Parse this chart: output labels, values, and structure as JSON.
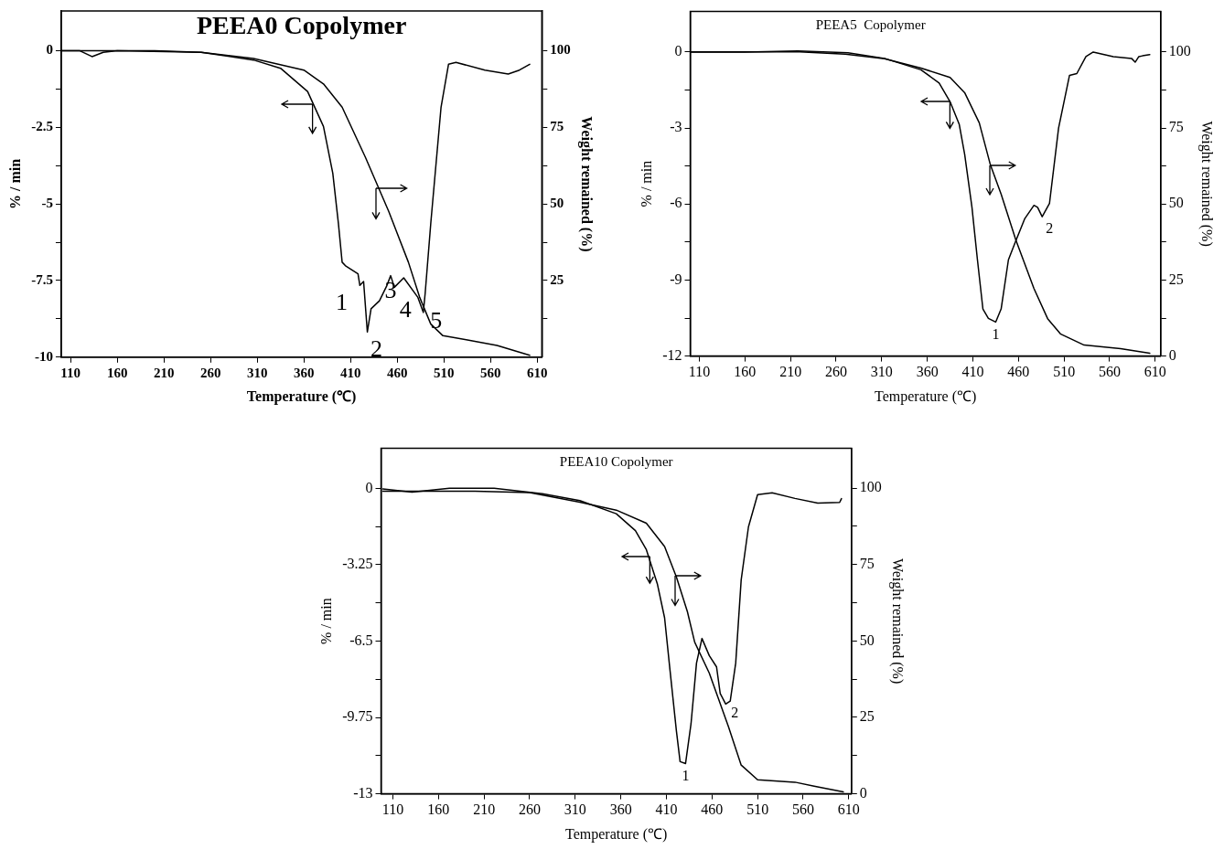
{
  "chart_data": [
    {
      "type": "line",
      "title": "PEEA0 Copolymer",
      "xlabel": "Temperature (℃)",
      "ylabel": "% / min",
      "y2label": "Weight remained (%)",
      "xlim": [
        100,
        615
      ],
      "xticks": [
        110,
        160,
        210,
        260,
        310,
        360,
        410,
        460,
        510,
        560,
        610
      ],
      "ylim": [
        -10,
        1.3
      ],
      "yticks": [
        0,
        {
          "value": -1.25,
          "label": null
        },
        -2.5,
        {
          "value": -3.75,
          "label": null
        },
        -5,
        {
          "value": -6.25,
          "label": null
        },
        -7.5,
        {
          "value": -8.75,
          "label": null
        },
        -10
      ],
      "y2lim": [
        0,
        113
      ],
      "y2ticks": [
        {
          "value": 12.5,
          "label": null
        },
        25,
        {
          "value": 37.5,
          "label": null
        },
        50,
        {
          "value": 62.5,
          "label": null
        },
        75,
        {
          "value": 87.5,
          "label": null
        },
        100
      ],
      "grid": false,
      "legend": false,
      "marker": "none",
      "series": [
        {
          "color": "#000000",
          "x": [
            100,
            120,
            133,
            145,
            160,
            250,
            306,
            335,
            364,
            381,
            391,
            397,
            401,
            405,
            418,
            420,
            424,
            428,
            432,
            441,
            449,
            453,
            457,
            467,
            482,
            488,
            490,
            496,
            507,
            515,
            523,
            554,
            579,
            591,
            602
          ],
          "values": [
            0,
            0,
            -0.19,
            -0.05,
            0,
            -0.05,
            -0.3,
            -0.57,
            -1.33,
            -2.47,
            -4.0,
            -5.63,
            -6.9,
            -7.03,
            -7.28,
            -7.66,
            -7.53,
            -9.18,
            -8.42,
            -8.16,
            -7.66,
            -7.34,
            -7.72,
            -7.41,
            -8.04,
            -8.54,
            -7.91,
            -5.63,
            -1.84,
            -0.44,
            -0.38,
            -0.63,
            -0.76,
            -0.63,
            -0.44
          ]
        },
        {
          "color": "#000000",
          "axis": "y2",
          "x": [
            100,
            200,
            250,
            306,
            360,
            381,
            401,
            426,
            451,
            472,
            484,
            496,
            509,
            534,
            567,
            602
          ],
          "values": [
            100,
            100,
            99.5,
            97.5,
            93.7,
            89.2,
            81.6,
            65.2,
            47.5,
            31,
            19.6,
            10.8,
            7,
            5.7,
            3.8,
            0.6
          ]
        }
      ],
      "annotations": [
        {
          "text": "1",
          "x": 420,
          "y": -7.66
        },
        {
          "text": "2",
          "x": 428,
          "y": -9.18
        },
        {
          "text": "3",
          "x": 453,
          "y": -7.34
        },
        {
          "text": "4",
          "x": 467,
          "y": -7.41
        },
        {
          "text": "5",
          "x": 488,
          "y": -8.54
        }
      ]
    },
    {
      "type": "line",
      "title": "PEEA5  Copolymer",
      "xlabel": "Temperature (℃)",
      "ylabel": "% / min",
      "y2label": "Weight remained (%)",
      "xlim": [
        100,
        616
      ],
      "xticks": [
        110,
        160,
        210,
        260,
        310,
        360,
        410,
        460,
        510,
        560,
        610
      ],
      "ylim": [
        -12,
        1.6
      ],
      "yticks": [
        0,
        {
          "value": -1.5,
          "label": null
        },
        -3,
        {
          "value": -4.5,
          "label": null
        },
        -6,
        {
          "value": -7.5,
          "label": null
        },
        -9,
        {
          "value": -10.5,
          "label": null
        },
        -12
      ],
      "y2lim": [
        0,
        113.3
      ],
      "y2ticks": [
        0,
        {
          "value": 12.5,
          "label": null
        },
        25,
        {
          "value": 37.5,
          "label": null
        },
        50,
        {
          "value": 62.5,
          "label": null
        },
        75,
        {
          "value": 87.5,
          "label": null
        },
        100
      ],
      "grid": false,
      "legend": false,
      "marker": "none",
      "series": [
        {
          "color": "#000000",
          "x": [
            100,
            160,
            218,
            273,
            313,
            353,
            373,
            385,
            395,
            401,
            409,
            415,
            421,
            427,
            435,
            441,
            449,
            457,
            467,
            477,
            481,
            486,
            494,
            504,
            516,
            524,
            534,
            542,
            564,
            584,
            588,
            592,
            596,
            604
          ],
          "values": [
            0,
            0,
            0.04,
            -0.03,
            -0.25,
            -0.7,
            -1.22,
            -1.96,
            -2.85,
            -4.04,
            -6.13,
            -8.2,
            -10.14,
            -10.51,
            -10.66,
            -10.14,
            -8.2,
            -7.46,
            -6.57,
            -6.05,
            -6.13,
            -6.5,
            -5.98,
            -3.0,
            -0.92,
            -0.85,
            -0.18,
            0,
            -0.18,
            -0.25,
            -0.4,
            -0.18,
            -0.15,
            -0.1
          ]
        },
        {
          "color": "#000000",
          "axis": "y2",
          "x": [
            100,
            220,
            270,
            313,
            353,
            385,
            401,
            417,
            429,
            441,
            457,
            477,
            492,
            506,
            532,
            572,
            604
          ],
          "values": [
            100,
            100,
            99.3,
            97.8,
            94.7,
            91.6,
            86.6,
            76.7,
            63.1,
            53.2,
            38.3,
            22.2,
            12.3,
            7.3,
            3.6,
            2.4,
            0.9
          ]
        }
      ],
      "annotations": [
        {
          "text": "1",
          "x": 435,
          "y": -10.66
        },
        {
          "text": "2",
          "x": 486,
          "y": -6.5
        }
      ]
    },
    {
      "type": "line",
      "title": "PEEA10 Copolymer",
      "xlabel": "Temperature (℃)",
      "ylabel": "% / min",
      "y2label": "Weight remained (%)",
      "xlim": [
        97,
        613
      ],
      "xticks": [
        110,
        160,
        210,
        260,
        310,
        360,
        410,
        460,
        510,
        560,
        610
      ],
      "ylim": [
        -13,
        1.7
      ],
      "yticks": [
        0,
        {
          "value": -1.625,
          "label": null
        },
        -3.25,
        {
          "value": -4.875,
          "label": null
        },
        -6.5,
        {
          "value": -8.125,
          "label": null
        },
        -9.75,
        {
          "value": -11.375,
          "label": null
        },
        -13
      ],
      "y2lim": [
        0,
        113
      ],
      "y2ticks": [
        0,
        {
          "value": 12.5,
          "label": null
        },
        25,
        {
          "value": 37.5,
          "label": null
        },
        50,
        {
          "value": 62.5,
          "label": null
        },
        75,
        {
          "value": 87.5,
          "label": null
        },
        100
      ],
      "grid": false,
      "legend": false,
      "marker": "none",
      "series": [
        {
          "color": "#000000",
          "x": [
            99,
            131,
            172,
            221,
            274,
            315,
            355,
            376,
            388,
            400,
            408,
            414,
            421,
            425,
            431,
            437,
            443,
            449,
            457,
            465,
            469,
            475,
            480,
            486,
            492,
            500,
            510,
            526,
            551,
            576,
            600,
            602
          ],
          "values": [
            -0.03,
            -0.16,
            0,
            0,
            -0.23,
            -0.52,
            -1.08,
            -1.8,
            -2.61,
            -4.06,
            -5.51,
            -7.76,
            -10.34,
            -11.63,
            -11.71,
            -10.02,
            -7.44,
            -6.39,
            -7.12,
            -7.6,
            -8.73,
            -9.18,
            -9.05,
            -7.44,
            -3.9,
            -1.64,
            -0.27,
            -0.19,
            -0.43,
            -0.63,
            -0.6,
            -0.44
          ]
        },
        {
          "color": "#000000",
          "axis": "y2",
          "x": [
            99,
            200,
            260,
            315,
            355,
            388,
            408,
            421,
            433,
            441,
            457,
            478,
            492,
            510,
            551,
            572,
            604
          ],
          "values": [
            99,
            99,
            98.5,
            95.4,
            92.8,
            88.5,
            80.9,
            70.9,
            59.6,
            49.6,
            39.5,
            22,
            9.4,
            4.6,
            3.8,
            2.5,
            0.6
          ]
        }
      ],
      "annotations": [
        {
          "text": "1",
          "x": 431,
          "y": -11.71
        },
        {
          "text": "2",
          "x": 475,
          "y": -9.18
        }
      ]
    }
  ]
}
